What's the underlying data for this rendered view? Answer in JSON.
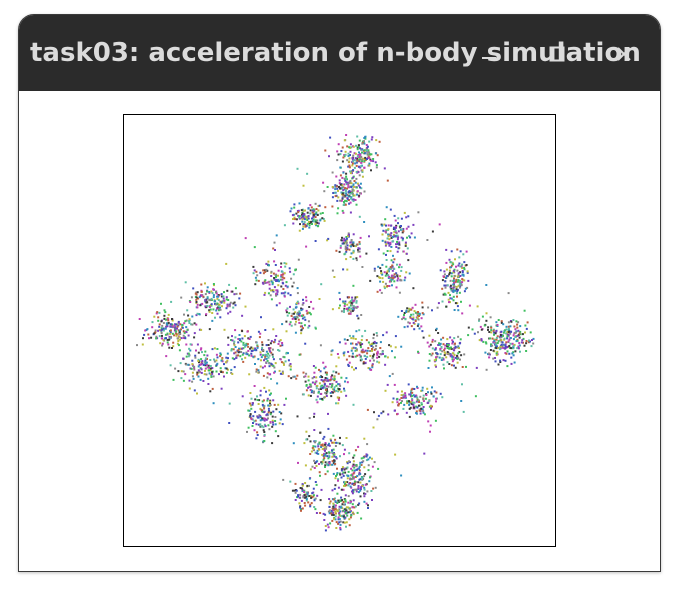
{
  "window": {
    "title": "task03: acceleration of n-body simulation",
    "controls": {
      "minimize_icon": "minimize-icon",
      "maximize_icon": "maximize-icon",
      "close_icon": "close-icon"
    }
  },
  "colors": {
    "titlebar": "#2b2b2b",
    "title_text": "#dcdcdc",
    "canvas_background": "#ffffff",
    "canvas_border": "#000000",
    "particle_palette": [
      "#3a3a3a",
      "#7d3fbf",
      "#2f8fbf",
      "#3fbf5f",
      "#bf3fb3",
      "#bfbf3f",
      "#3f4fbf",
      "#bf5f3f",
      "#8a8a8a",
      "#5fbfa6"
    ]
  }
}
